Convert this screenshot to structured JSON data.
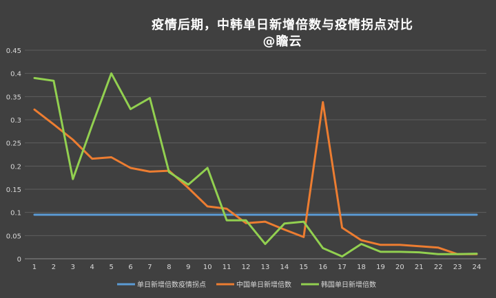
{
  "chart_data": {
    "type": "line",
    "title": "疫情后期，中韩单日新增倍数与疫情拐点对比",
    "subtitle": "@瞻云",
    "xlabel": "",
    "ylabel": "",
    "x": [
      1,
      2,
      3,
      4,
      5,
      6,
      7,
      8,
      9,
      10,
      11,
      12,
      13,
      14,
      15,
      16,
      17,
      18,
      19,
      20,
      21,
      22,
      23,
      24
    ],
    "ylim": [
      0,
      0.45
    ],
    "yticks": [
      "0",
      "0.05",
      "0.1",
      "0.15",
      "0.2",
      "0.25",
      "0.3",
      "0.35",
      "0.4",
      "0.45"
    ],
    "grid": true,
    "legend_position": "bottom",
    "series": [
      {
        "name": "单日新增倍数疫情拐点",
        "color": "#5B9BD5",
        "values": [
          0.095,
          0.095,
          0.095,
          0.095,
          0.095,
          0.095,
          0.095,
          0.095,
          0.095,
          0.095,
          0.095,
          0.095,
          0.095,
          0.095,
          0.095,
          0.095,
          0.095,
          0.095,
          0.095,
          0.095,
          0.095,
          0.095,
          0.095,
          0.095
        ]
      },
      {
        "name": "中国单日新增倍数",
        "color": "#ED7D31",
        "values": [
          0.322,
          0.29,
          0.257,
          0.216,
          0.219,
          0.196,
          0.188,
          0.19,
          0.153,
          0.113,
          0.108,
          0.077,
          0.08,
          0.063,
          0.047,
          0.338,
          0.067,
          0.04,
          0.03,
          0.03,
          0.027,
          0.024,
          0.01,
          0.01
        ]
      },
      {
        "name": "韩国单日新增倍数",
        "color": "#92D050",
        "values": [
          0.39,
          0.384,
          0.172,
          0.288,
          0.4,
          0.323,
          0.347,
          0.187,
          0.16,
          0.196,
          0.083,
          0.083,
          0.032,
          0.076,
          0.08,
          0.023,
          0.005,
          0.032,
          0.015,
          0.015,
          0.014,
          0.01,
          0.01,
          0.011
        ]
      }
    ]
  }
}
